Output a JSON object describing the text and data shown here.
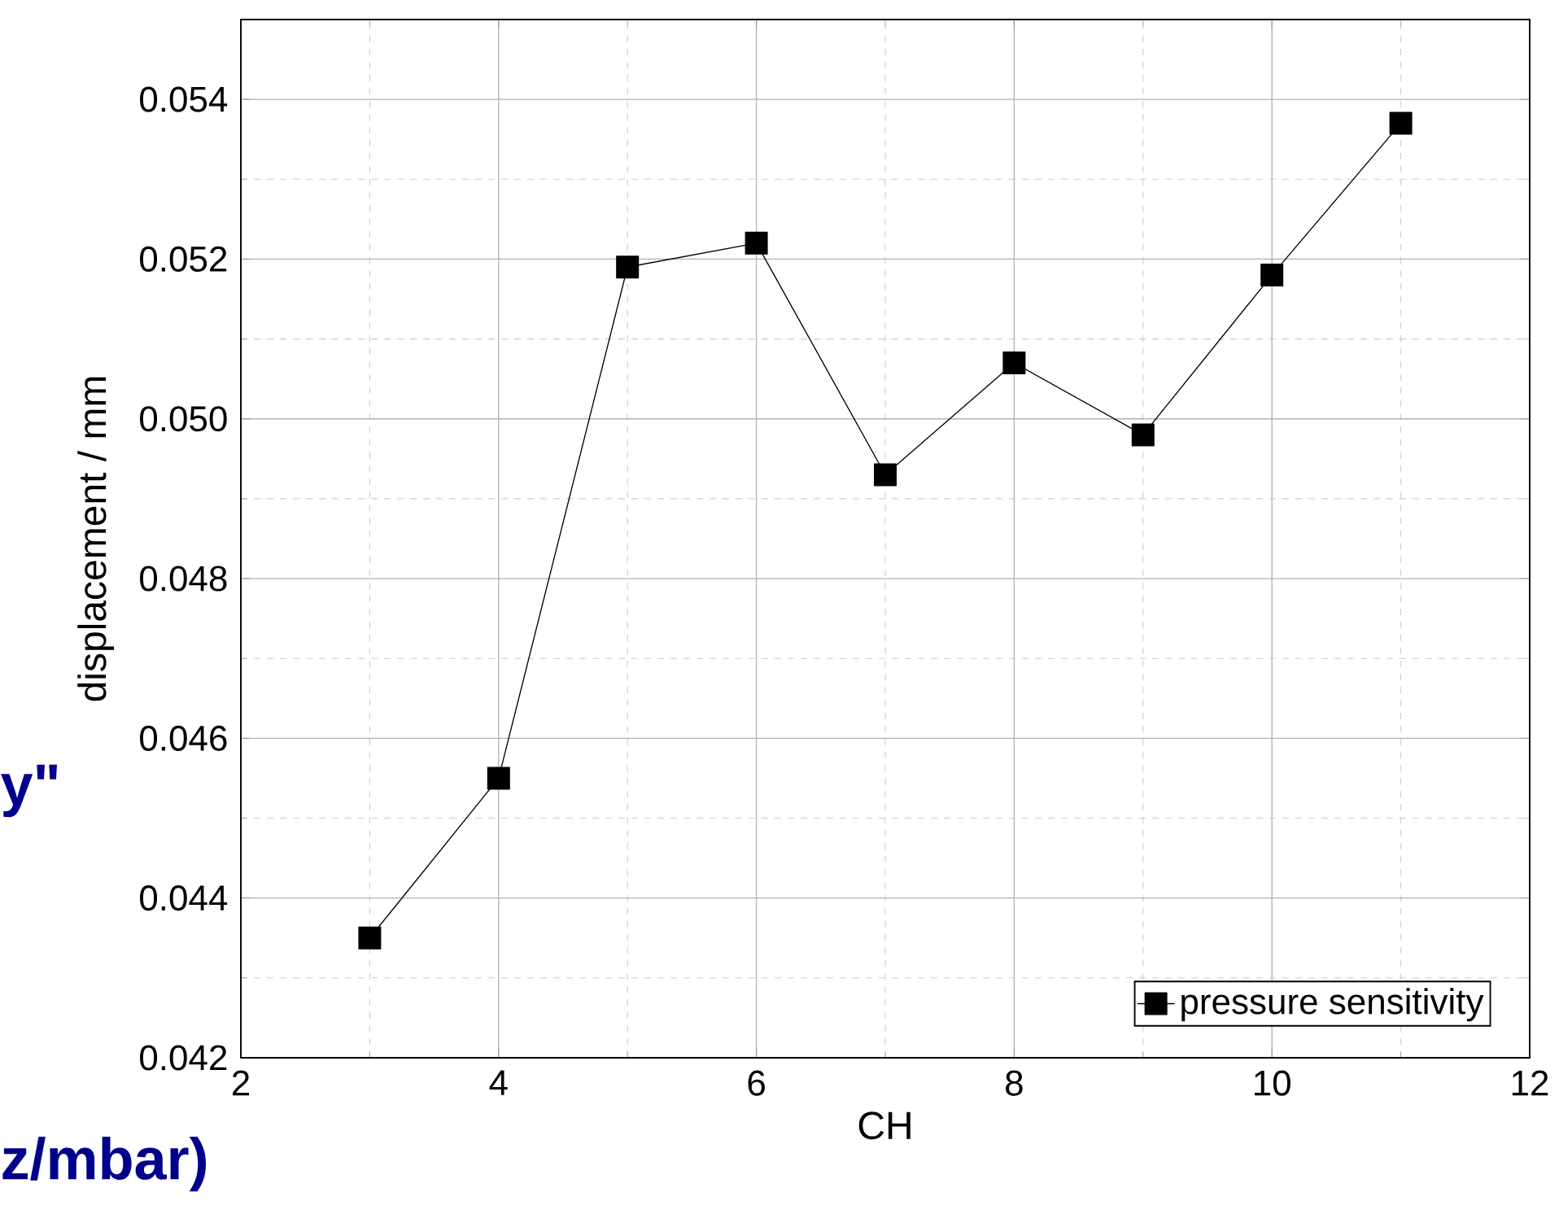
{
  "chart_data": {
    "type": "line",
    "xlabel": "CH",
    "ylabel": "displacement / mm",
    "x": [
      3,
      4,
      5,
      6,
      7,
      8,
      9,
      10,
      11
    ],
    "series": [
      {
        "name": "pressure sensitivity",
        "color": "#000000",
        "values": [
          0.0435,
          0.0455,
          0.0519,
          0.0522,
          0.0493,
          0.0507,
          0.0498,
          0.0518,
          0.0537
        ]
      }
    ],
    "xlim": [
      2,
      12
    ],
    "xticks": [
      2,
      4,
      6,
      8,
      10,
      12
    ],
    "ylim": [
      0.042,
      0.055
    ],
    "yticks": [
      0.042,
      0.044,
      0.046,
      0.048,
      {
        "value": 0.05,
        "label": "0.050"
      },
      0.052,
      0.054
    ],
    "grid": true,
    "legend": "bottom right",
    "marker": "square",
    "line_style": "solid",
    "annotations": [
      "y\"",
      "z/mbar)"
    ]
  }
}
